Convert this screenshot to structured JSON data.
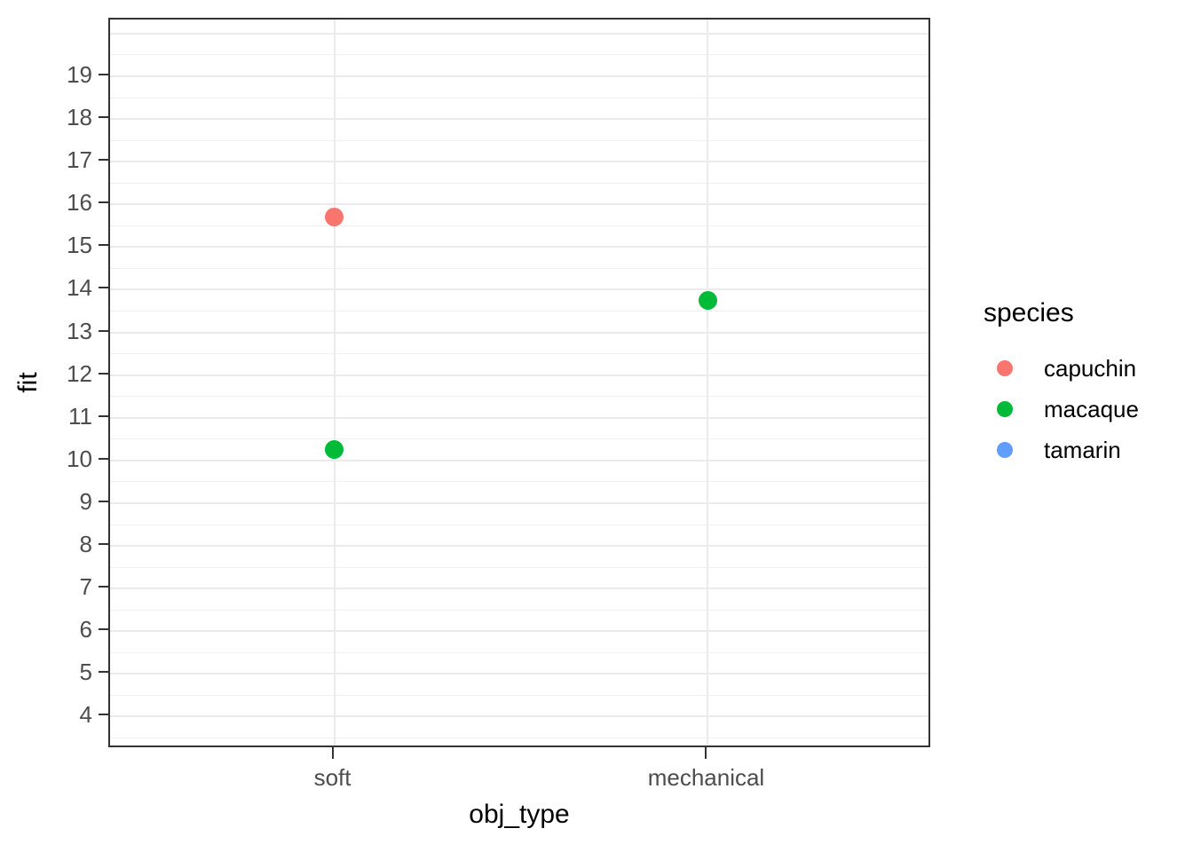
{
  "chart_data": {
    "type": "scatter",
    "title": "",
    "xlabel": "obj_type",
    "ylabel": "fit",
    "categories": [
      "soft",
      "mechanical"
    ],
    "y_ticks": [
      4,
      5,
      6,
      7,
      8,
      9,
      10,
      11,
      12,
      13,
      14,
      15,
      16,
      17,
      18,
      19
    ],
    "ylim": [
      3.24,
      20.33
    ],
    "grid": {
      "major": true,
      "minor": true
    },
    "series": [
      {
        "name": "capuchin",
        "color": "#F8766D",
        "points": [
          {
            "x": "soft",
            "y": 15.7
          }
        ]
      },
      {
        "name": "macaque",
        "color": "#00BA38",
        "points": [
          {
            "x": "soft",
            "y": 10.25
          },
          {
            "x": "mechanical",
            "y": 13.75
          }
        ]
      },
      {
        "name": "tamarin",
        "color": "#619CFF",
        "points": []
      }
    ],
    "legend": {
      "title": "species",
      "position": "right",
      "entries": [
        "capuchin",
        "macaque",
        "tamarin"
      ]
    }
  },
  "colors": {
    "background": "#FFFFFF",
    "panel_border": "#333333",
    "grid_major": "#EBEBEB",
    "grid_minor": "#F1F1F1",
    "axis_text": "#4D4D4D",
    "title_text": "#000000"
  }
}
